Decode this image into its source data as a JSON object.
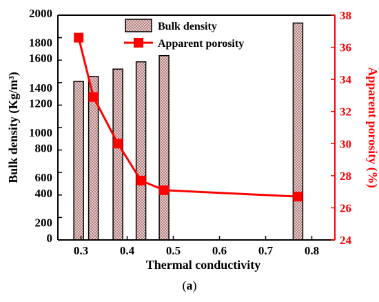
{
  "chart_data": {
    "type": "bar+line",
    "xlabel": "Thermal conductivity",
    "y1label": "Bulk density (Kg/m³)",
    "y2label": "Apparent porosity (%)",
    "xlim": [
      0.25,
      0.85
    ],
    "xticks": [
      "0.3",
      "0.4",
      "0.5",
      "0.6",
      "0.7",
      "0.8"
    ],
    "y1lim": [
      0,
      2000
    ],
    "y1ticks": [
      "0",
      "200",
      "400",
      "600",
      "800",
      "1000",
      "1200",
      "1400",
      "1600",
      "1800",
      "2000"
    ],
    "y2lim": [
      24,
      38
    ],
    "y2ticks": [
      "24",
      "26",
      "28",
      "30",
      "32",
      "34",
      "36",
      "38"
    ],
    "grid": false,
    "legend_position": "top-center",
    "series": [
      {
        "name": "Bulk density",
        "kind": "bar",
        "axis": "left",
        "color": "#c98f8f",
        "x": [
          0.295,
          0.327,
          0.38,
          0.43,
          0.48,
          0.77
        ],
        "values": [
          1410,
          1455,
          1520,
          1585,
          1640,
          1930
        ]
      },
      {
        "name": "Apparent porosity",
        "kind": "line",
        "axis": "right",
        "color": "#ff0000",
        "x": [
          0.295,
          0.327,
          0.38,
          0.43,
          0.48,
          0.77
        ],
        "values": [
          36.6,
          32.9,
          30.0,
          27.7,
          27.1,
          26.7
        ]
      }
    ]
  },
  "caption": {
    "open": "(",
    "letter": "a",
    "close": ")"
  }
}
